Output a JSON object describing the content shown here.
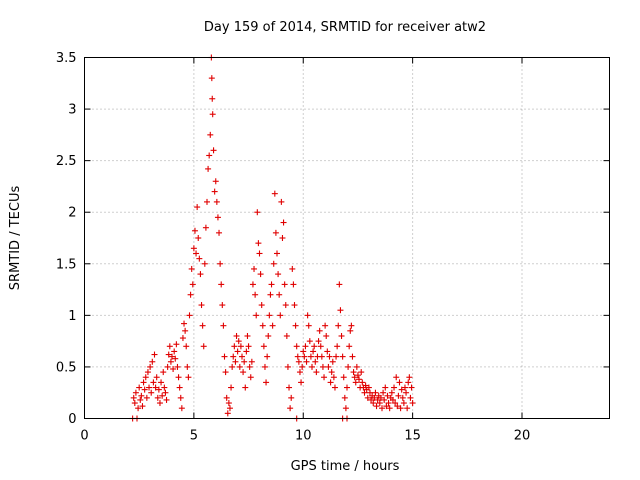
{
  "chart_data": {
    "type": "scatter",
    "title": "Day 159 of 2014, SRMTID for receiver atw2",
    "xlabel": "GPS time / hours",
    "ylabel": "SRMTID / TECUs",
    "xlim": [
      0,
      24
    ],
    "ylim": [
      0,
      3.5
    ],
    "x_ticks": [
      "0",
      "5",
      "10",
      "15",
      "20"
    ],
    "y_ticks": [
      "0",
      "0.5",
      "1",
      "1.5",
      "2",
      "2.5",
      "3",
      "3.5"
    ],
    "grid": true,
    "marker": "plus",
    "color": "#e00000",
    "series": [
      {
        "name": "atw2",
        "points": [
          [
            2.2,
            0.0
          ],
          [
            2.4,
            0.0
          ],
          [
            9.7,
            0.0
          ],
          [
            11.8,
            0.0
          ],
          [
            12.0,
            0.0
          ],
          [
            2.25,
            0.2
          ],
          [
            2.3,
            0.15
          ],
          [
            2.35,
            0.25
          ],
          [
            2.45,
            0.1
          ],
          [
            2.5,
            0.3
          ],
          [
            2.55,
            0.18
          ],
          [
            2.6,
            0.22
          ],
          [
            2.65,
            0.12
          ],
          [
            2.7,
            0.35
          ],
          [
            2.75,
            0.28
          ],
          [
            2.8,
            0.4
          ],
          [
            2.85,
            0.2
          ],
          [
            2.9,
            0.45
          ],
          [
            2.95,
            0.3
          ],
          [
            3.0,
            0.5
          ],
          [
            3.05,
            0.25
          ],
          [
            3.1,
            0.55
          ],
          [
            3.15,
            0.35
          ],
          [
            3.2,
            0.62
          ],
          [
            3.25,
            0.3
          ],
          [
            3.3,
            0.4
          ],
          [
            3.35,
            0.2
          ],
          [
            3.4,
            0.28
          ],
          [
            3.45,
            0.15
          ],
          [
            3.5,
            0.35
          ],
          [
            3.55,
            0.22
          ],
          [
            3.6,
            0.45
          ],
          [
            3.65,
            0.3
          ],
          [
            3.7,
            0.25
          ],
          [
            3.75,
            0.18
          ],
          [
            3.8,
            0.5
          ],
          [
            3.85,
            0.62
          ],
          [
            3.9,
            0.7
          ],
          [
            3.95,
            0.55
          ],
          [
            4.0,
            0.6
          ],
          [
            4.05,
            0.48
          ],
          [
            4.1,
            0.65
          ],
          [
            4.15,
            0.58
          ],
          [
            4.2,
            0.72
          ],
          [
            4.25,
            0.5
          ],
          [
            4.3,
            0.4
          ],
          [
            4.35,
            0.3
          ],
          [
            4.4,
            0.2
          ],
          [
            4.45,
            0.1
          ],
          [
            4.5,
            0.78
          ],
          [
            4.55,
            0.92
          ],
          [
            4.6,
            0.85
          ],
          [
            4.65,
            0.7
          ],
          [
            4.7,
            0.5
          ],
          [
            4.75,
            0.4
          ],
          [
            4.8,
            1.0
          ],
          [
            4.85,
            1.2
          ],
          [
            4.9,
            1.45
          ],
          [
            4.95,
            1.3
          ],
          [
            5.0,
            1.65
          ],
          [
            5.05,
            1.82
          ],
          [
            5.1,
            1.6
          ],
          [
            5.15,
            2.05
          ],
          [
            5.2,
            1.75
          ],
          [
            5.25,
            1.55
          ],
          [
            5.3,
            1.4
          ],
          [
            5.35,
            1.1
          ],
          [
            5.4,
            0.9
          ],
          [
            5.45,
            0.7
          ],
          [
            5.5,
            1.5
          ],
          [
            5.55,
            1.85
          ],
          [
            5.6,
            2.1
          ],
          [
            5.65,
            2.42
          ],
          [
            5.7,
            2.55
          ],
          [
            5.75,
            2.75
          ],
          [
            5.8,
            3.5
          ],
          [
            5.82,
            3.3
          ],
          [
            5.84,
            3.1
          ],
          [
            5.86,
            2.95
          ],
          [
            5.9,
            2.6
          ],
          [
            5.95,
            2.2
          ],
          [
            6.0,
            2.3
          ],
          [
            6.05,
            2.1
          ],
          [
            6.1,
            1.95
          ],
          [
            6.15,
            1.8
          ],
          [
            6.2,
            1.5
          ],
          [
            6.25,
            1.3
          ],
          [
            6.3,
            1.1
          ],
          [
            6.35,
            0.9
          ],
          [
            6.4,
            0.6
          ],
          [
            6.45,
            0.45
          ],
          [
            6.5,
            0.2
          ],
          [
            6.55,
            0.05
          ],
          [
            6.6,
            0.15
          ],
          [
            6.65,
            0.1
          ],
          [
            6.7,
            0.3
          ],
          [
            6.75,
            0.5
          ],
          [
            6.8,
            0.6
          ],
          [
            6.85,
            0.7
          ],
          [
            6.9,
            0.55
          ],
          [
            6.95,
            0.8
          ],
          [
            7.0,
            0.65
          ],
          [
            7.05,
            0.75
          ],
          [
            7.1,
            0.5
          ],
          [
            7.15,
            0.7
          ],
          [
            7.2,
            0.6
          ],
          [
            7.25,
            0.45
          ],
          [
            7.3,
            0.55
          ],
          [
            7.35,
            0.3
          ],
          [
            7.4,
            0.65
          ],
          [
            7.45,
            0.8
          ],
          [
            7.5,
            0.7
          ],
          [
            7.55,
            0.5
          ],
          [
            7.6,
            0.4
          ],
          [
            7.65,
            0.55
          ],
          [
            7.7,
            1.3
          ],
          [
            7.75,
            1.45
          ],
          [
            7.8,
            1.2
          ],
          [
            7.85,
            1.0
          ],
          [
            7.9,
            2.0
          ],
          [
            7.95,
            1.7
          ],
          [
            8.0,
            1.6
          ],
          [
            8.05,
            1.4
          ],
          [
            8.1,
            1.1
          ],
          [
            8.15,
            0.9
          ],
          [
            8.2,
            0.7
          ],
          [
            8.25,
            0.5
          ],
          [
            8.3,
            0.35
          ],
          [
            8.35,
            0.6
          ],
          [
            8.4,
            0.8
          ],
          [
            8.45,
            1.0
          ],
          [
            8.5,
            1.2
          ],
          [
            8.55,
            1.3
          ],
          [
            8.6,
            0.9
          ],
          [
            8.65,
            1.5
          ],
          [
            8.7,
            2.18
          ],
          [
            8.75,
            1.8
          ],
          [
            8.8,
            1.6
          ],
          [
            8.85,
            1.4
          ],
          [
            8.9,
            1.2
          ],
          [
            8.95,
            1.0
          ],
          [
            9.0,
            2.1
          ],
          [
            9.05,
            1.75
          ],
          [
            9.1,
            1.9
          ],
          [
            9.15,
            1.3
          ],
          [
            9.2,
            1.1
          ],
          [
            9.25,
            0.8
          ],
          [
            9.3,
            0.5
          ],
          [
            9.35,
            0.3
          ],
          [
            9.4,
            0.1
          ],
          [
            9.45,
            0.2
          ],
          [
            9.5,
            1.45
          ],
          [
            9.55,
            1.3
          ],
          [
            9.6,
            1.1
          ],
          [
            9.65,
            0.9
          ],
          [
            9.7,
            0.7
          ],
          [
            9.75,
            0.6
          ],
          [
            9.8,
            0.55
          ],
          [
            9.85,
            0.45
          ],
          [
            9.9,
            0.35
          ],
          [
            9.95,
            0.5
          ],
          [
            10.0,
            0.65
          ],
          [
            10.05,
            0.6
          ],
          [
            10.1,
            0.7
          ],
          [
            10.15,
            0.55
          ],
          [
            10.2,
            1.0
          ],
          [
            10.25,
            0.9
          ],
          [
            10.3,
            0.75
          ],
          [
            10.35,
            0.6
          ],
          [
            10.4,
            0.5
          ],
          [
            10.45,
            0.65
          ],
          [
            10.5,
            0.7
          ],
          [
            10.55,
            0.55
          ],
          [
            10.6,
            0.45
          ],
          [
            10.65,
            0.6
          ],
          [
            10.7,
            0.75
          ],
          [
            10.75,
            0.85
          ],
          [
            10.8,
            0.7
          ],
          [
            10.85,
            0.6
          ],
          [
            10.9,
            0.5
          ],
          [
            10.95,
            0.4
          ],
          [
            11.0,
            0.9
          ],
          [
            11.05,
            0.8
          ],
          [
            11.1,
            0.65
          ],
          [
            11.15,
            0.5
          ],
          [
            11.2,
            0.6
          ],
          [
            11.25,
            0.35
          ],
          [
            11.3,
            0.45
          ],
          [
            11.35,
            0.55
          ],
          [
            11.4,
            0.4
          ],
          [
            11.45,
            0.3
          ],
          [
            11.5,
            0.6
          ],
          [
            11.55,
            0.7
          ],
          [
            11.6,
            0.9
          ],
          [
            11.65,
            1.3
          ],
          [
            11.7,
            1.05
          ],
          [
            11.75,
            0.8
          ],
          [
            11.8,
            0.6
          ],
          [
            11.85,
            0.4
          ],
          [
            11.9,
            0.2
          ],
          [
            11.95,
            0.1
          ],
          [
            12.0,
            0.3
          ],
          [
            12.05,
            0.5
          ],
          [
            12.1,
            0.7
          ],
          [
            12.15,
            0.85
          ],
          [
            12.2,
            0.9
          ],
          [
            12.25,
            0.6
          ],
          [
            12.3,
            0.45
          ],
          [
            12.35,
            0.4
          ],
          [
            12.4,
            0.35
          ],
          [
            12.45,
            0.5
          ],
          [
            12.5,
            0.42
          ],
          [
            12.55,
            0.38
          ],
          [
            12.6,
            0.3
          ],
          [
            12.65,
            0.45
          ],
          [
            12.7,
            0.35
          ],
          [
            12.75,
            0.3
          ],
          [
            12.8,
            0.25
          ],
          [
            12.85,
            0.32
          ],
          [
            12.9,
            0.28
          ],
          [
            12.95,
            0.2
          ],
          [
            13.0,
            0.3
          ],
          [
            13.05,
            0.25
          ],
          [
            13.1,
            0.18
          ],
          [
            13.15,
            0.22
          ],
          [
            13.2,
            0.15
          ],
          [
            13.25,
            0.2
          ],
          [
            13.3,
            0.25
          ],
          [
            13.35,
            0.12
          ],
          [
            13.4,
            0.18
          ],
          [
            13.45,
            0.22
          ],
          [
            13.5,
            0.15
          ],
          [
            13.55,
            0.2
          ],
          [
            13.6,
            0.1
          ],
          [
            13.65,
            0.25
          ],
          [
            13.7,
            0.18
          ],
          [
            13.75,
            0.3
          ],
          [
            13.8,
            0.12
          ],
          [
            13.85,
            0.22
          ],
          [
            13.9,
            0.15
          ],
          [
            13.95,
            0.1
          ],
          [
            14.0,
            0.2
          ],
          [
            14.05,
            0.25
          ],
          [
            14.1,
            0.18
          ],
          [
            14.15,
            0.3
          ],
          [
            14.2,
            0.15
          ],
          [
            14.25,
            0.4
          ],
          [
            14.3,
            0.12
          ],
          [
            14.35,
            0.22
          ],
          [
            14.4,
            0.35
          ],
          [
            14.45,
            0.1
          ],
          [
            14.5,
            0.28
          ],
          [
            14.55,
            0.2
          ],
          [
            14.6,
            0.15
          ],
          [
            14.65,
            0.3
          ],
          [
            14.7,
            0.25
          ],
          [
            14.75,
            0.1
          ],
          [
            14.8,
            0.35
          ],
          [
            14.85,
            0.4
          ],
          [
            14.9,
            0.2
          ],
          [
            14.95,
            0.3
          ],
          [
            15.0,
            0.15
          ]
        ]
      }
    ]
  }
}
